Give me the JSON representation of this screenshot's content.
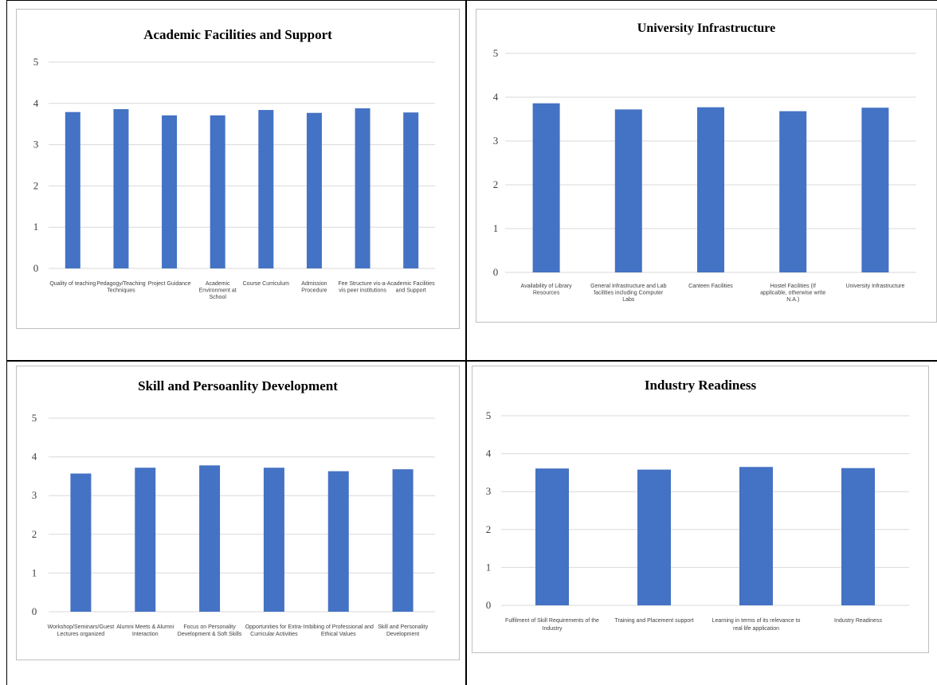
{
  "chart_data": [
    {
      "type": "bar",
      "title": "Academic Facilities and Support",
      "categories": [
        [
          "Quality of teaching"
        ],
        [
          "Pedagogy/Teaching",
          "Techniques"
        ],
        [
          "Project Guidance"
        ],
        [
          "Academic",
          "Environment at",
          "School"
        ],
        [
          "Course Curriculum"
        ],
        [
          "Admission",
          "Procedure"
        ],
        [
          "Fee Structure vis-a-",
          "vis peer institutions"
        ],
        [
          "Academic Facilities",
          "and Support"
        ]
      ],
      "values": [
        3.79,
        3.86,
        3.71,
        3.71,
        3.84,
        3.77,
        3.88,
        3.78
      ],
      "ylim": [
        0,
        5
      ],
      "yticks": [
        "0",
        "1",
        "2",
        "3",
        "4",
        "5"
      ],
      "color": "#4472C4",
      "grid": true
    },
    {
      "type": "bar",
      "title": "University Infrastructure",
      "categories": [
        [
          "Availability of Library",
          "Resources"
        ],
        [
          "General Infrastructure and Lab",
          "facilities including Computer",
          "Labs"
        ],
        [
          "Canteen Facilities"
        ],
        [
          "Hostel Facilities (If",
          "applicable, otherwise write",
          "N.A.)"
        ],
        [
          "University Infrastructure"
        ]
      ],
      "values": [
        3.86,
        3.72,
        3.77,
        3.68,
        3.76
      ],
      "ylim": [
        0,
        5
      ],
      "yticks": [
        "0",
        "1",
        "2",
        "3",
        "4",
        "5"
      ],
      "color": "#4472C4",
      "grid": true
    },
    {
      "type": "bar",
      "title": "Skill and Persoanlity Development",
      "categories": [
        [
          "Workshop/Seminars/Guest",
          "Lectures organized"
        ],
        [
          "Alumni Meets & Alumni",
          "Interaction"
        ],
        [
          "Focus on Personality",
          "Development & Soft Skills"
        ],
        [
          "Opportunities for Extra-",
          "Curricular Activities"
        ],
        [
          "Imbibing of Professional and",
          "Ethical Values"
        ],
        [
          "Skill and Personality",
          "Development"
        ]
      ],
      "values": [
        3.57,
        3.72,
        3.78,
        3.72,
        3.63,
        3.68
      ],
      "ylim": [
        0,
        5
      ],
      "yticks": [
        "0",
        "1",
        "2",
        "3",
        "4",
        "5"
      ],
      "color": "#4472C4",
      "grid": true
    },
    {
      "type": "bar",
      "title": "Industry Readiness",
      "categories": [
        [
          "Fulfilment of Skill Requirements of the",
          "Industry"
        ],
        [
          "Training and Placement support"
        ],
        [
          "Learning in terms of its relevance to",
          "real life application"
        ],
        [
          "Industry Readiness"
        ]
      ],
      "values": [
        3.61,
        3.58,
        3.65,
        3.62
      ],
      "ylim": [
        0,
        5
      ],
      "yticks": [
        "0",
        "1",
        "2",
        "3",
        "4",
        "5"
      ],
      "color": "#4472C4",
      "grid": true
    }
  ]
}
